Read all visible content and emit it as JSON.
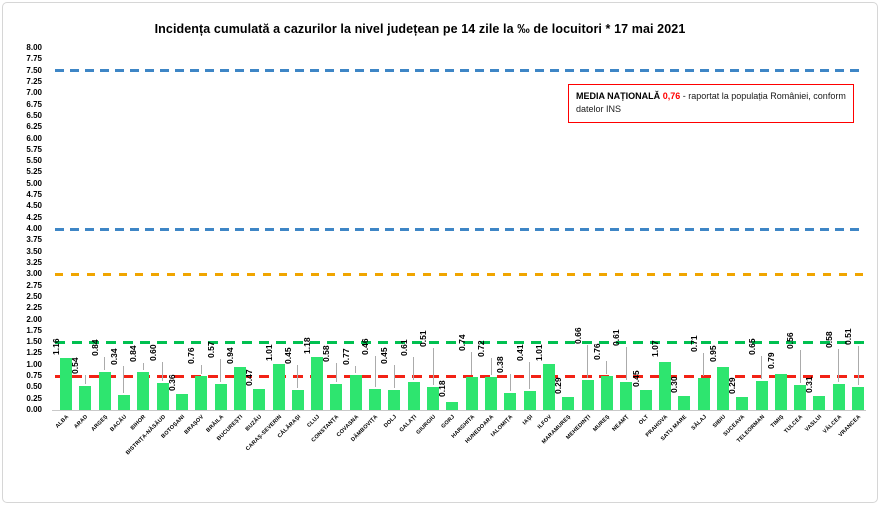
{
  "chart_data": {
    "type": "bar",
    "title": "Incidența cumulată a cazurilor la nivel județean pe 14 zile la ‰ de locuitori * 17 mai 2021",
    "xlabel": "",
    "ylabel": "",
    "ylim": [
      0,
      8
    ],
    "ytick_step": 0.25,
    "grid": "off",
    "legend": "none",
    "bar_color": "#2ee56f",
    "categories": [
      "ALBA",
      "ARAD",
      "ARGEȘ",
      "BACĂU",
      "BIHOR",
      "BISTRIȚA-NĂSĂUD",
      "BOTOȘANI",
      "BRAȘOV",
      "BRĂILA",
      "BUCUREȘTI",
      "BUZĂU",
      "CARAȘ-SEVERIN",
      "CĂLĂRAȘI",
      "CLUJ",
      "CONSTANȚA",
      "COVASNA",
      "DÂMBOVIȚA",
      "DOLJ",
      "GALAȚI",
      "GIURGIU",
      "GORJ",
      "HARGHITA",
      "HUNEDOARA",
      "IALOMIȚA",
      "IAȘI",
      "ILFOV",
      "MARAMUREȘ",
      "MEHEDINȚI",
      "MUREȘ",
      "NEAMȚ",
      "OLT",
      "PRAHOVA",
      "SATU MARE",
      "SĂLAJ",
      "SIBIU",
      "SUCEAVA",
      "TELEORMAN",
      "TIMIȘ",
      "TULCEA",
      "VASLUI",
      "VÂLCEA",
      "VRANCEA"
    ],
    "values": [
      1.16,
      0.54,
      0.84,
      0.34,
      0.84,
      0.6,
      0.36,
      0.76,
      0.57,
      0.94,
      0.47,
      1.01,
      0.45,
      1.18,
      0.58,
      0.77,
      0.46,
      0.45,
      0.61,
      0.51,
      0.18,
      0.74,
      0.72,
      0.38,
      0.41,
      1.01,
      0.29,
      0.66,
      0.76,
      0.61,
      0.45,
      1.07,
      0.3,
      0.71,
      0.95,
      0.29,
      0.65,
      0.79,
      0.56,
      0.31,
      0.58,
      0.51
    ],
    "value_label_rotation": 90,
    "category_label_rotation": 45,
    "label_offsets": [
      3,
      12,
      16,
      30,
      10,
      22,
      3,
      12,
      26,
      3,
      3,
      3,
      26,
      3,
      22,
      10,
      34,
      26,
      26,
      40,
      5,
      26,
      20,
      20,
      30,
      3,
      3,
      36,
      16,
      36,
      3,
      5,
      3,
      26,
      5,
      3,
      26,
      5,
      36,
      3,
      36,
      42
    ],
    "thresholds": [
      {
        "value": 7.5,
        "color": "#3e86c6",
        "dash": 9,
        "gap": 6
      },
      {
        "value": 4.0,
        "color": "#3e86c6",
        "dash": 9,
        "gap": 6
      },
      {
        "value": 3.0,
        "color": "#f0a500",
        "dash": 8,
        "gap": 8
      },
      {
        "value": 1.5,
        "color": "#00c050",
        "dash": 10,
        "gap": 7
      },
      {
        "value": 0.75,
        "color": "#f22215",
        "dash": 10,
        "gap": 7
      }
    ]
  },
  "annotation": {
    "label": "MEDIA NAȚIONALĂ",
    "value": "0,76",
    "text": "- raportat la populația României, conform datelor INS",
    "value_color": "#ff0000",
    "border_color": "#ff0000"
  }
}
